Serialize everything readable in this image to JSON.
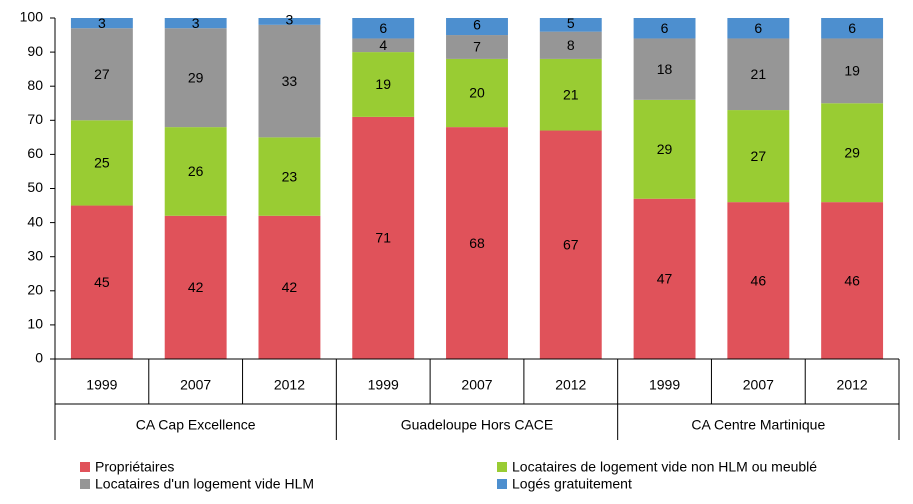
{
  "chart_data": {
    "type": "stacked_bar",
    "categories": [
      "1999",
      "2007",
      "2012",
      "1999",
      "2007",
      "2012",
      "1999",
      "2007",
      "2012"
    ],
    "groups": [
      "CA Cap Excellence",
      "Guadeloupe Hors CACE",
      "CA Centre Martinique"
    ],
    "series": [
      {
        "name": "Propriétaires",
        "color": "#e0525a",
        "values": [
          45,
          42,
          42,
          71,
          68,
          67,
          47,
          46,
          46
        ]
      },
      {
        "name": "Locataires de logement vide non HLM ou meublé",
        "color": "#99cc33",
        "values": [
          25,
          26,
          23,
          19,
          20,
          21,
          29,
          27,
          29
        ]
      },
      {
        "name": "Locataires d'un logement vide HLM",
        "color": "#969696",
        "values": [
          27,
          29,
          33,
          4,
          7,
          8,
          18,
          21,
          19
        ]
      },
      {
        "name": "Logés gratuitement",
        "color": "#4d8fcf",
        "values": [
          3,
          3,
          3,
          6,
          6,
          5,
          6,
          6,
          6
        ]
      }
    ],
    "ylim": [
      0,
      100
    ],
    "yticks": [
      0,
      10,
      20,
      30,
      40,
      50,
      60,
      70,
      80,
      90,
      100
    ]
  }
}
